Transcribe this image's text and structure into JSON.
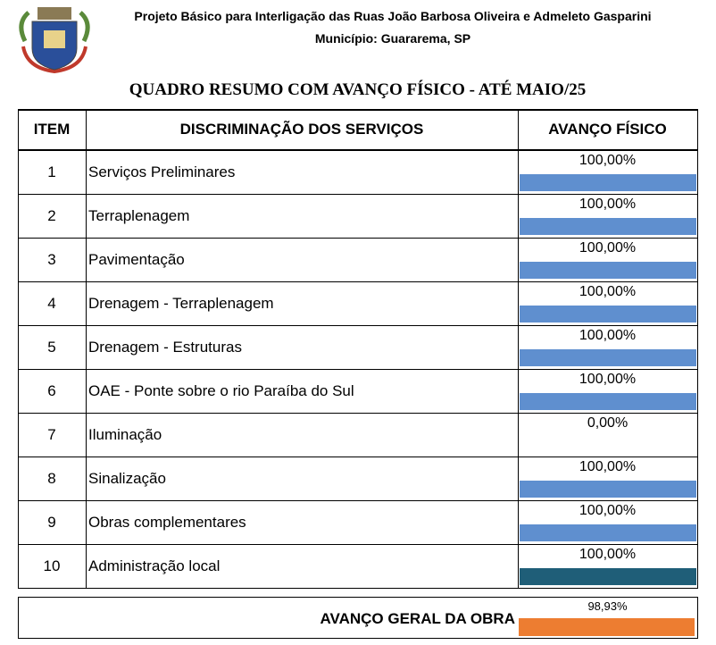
{
  "header": {
    "title": "Projeto Básico para Interligação das Ruas João Barbosa Oliveira e Admeleto Gasparini",
    "subtitle": "Município: Guararema, SP"
  },
  "heading": "QUADRO RESUMO COM AVANÇO FÍSICO - ATÉ MAIO/25",
  "table": {
    "columns": [
      "ITEM",
      "DISCRIMINAÇÃO DOS SERVIÇOS",
      "AVANÇO FÍSICO"
    ],
    "rows": [
      {
        "item": "1",
        "service": "Serviços Preliminares",
        "progress": 100,
        "progress_label": "100,00%"
      },
      {
        "item": "2",
        "service": "Terraplenagem",
        "progress": 100,
        "progress_label": "100,00%"
      },
      {
        "item": "3",
        "service": "Pavimentação",
        "progress": 100,
        "progress_label": "100,00%"
      },
      {
        "item": "4",
        "service": "Drenagem - Terraplenagem",
        "progress": 100,
        "progress_label": "100,00%"
      },
      {
        "item": "5",
        "service": "Drenagem - Estruturas",
        "progress": 100,
        "progress_label": "100,00%"
      },
      {
        "item": "6",
        "service": "OAE - Ponte sobre o rio Paraíba do Sul",
        "progress": 100,
        "progress_label": "100,00%"
      },
      {
        "item": "7",
        "service": "Iluminação",
        "progress": 0,
        "progress_label": "0,00%"
      },
      {
        "item": "8",
        "service": "Sinalização",
        "progress": 100,
        "progress_label": "100,00%"
      },
      {
        "item": "9",
        "service": "Obras complementares",
        "progress": 100,
        "progress_label": "100,00%"
      },
      {
        "item": "10",
        "service": "Administração local",
        "progress": 100,
        "progress_label": "100,00%",
        "color": "#1f5e78"
      }
    ],
    "bar_color": "#5f8fcf"
  },
  "total": {
    "label": "AVANÇO GERAL DA OBRA",
    "progress": 98.93,
    "progress_label": "98,93%",
    "color": "#ed7d31"
  }
}
